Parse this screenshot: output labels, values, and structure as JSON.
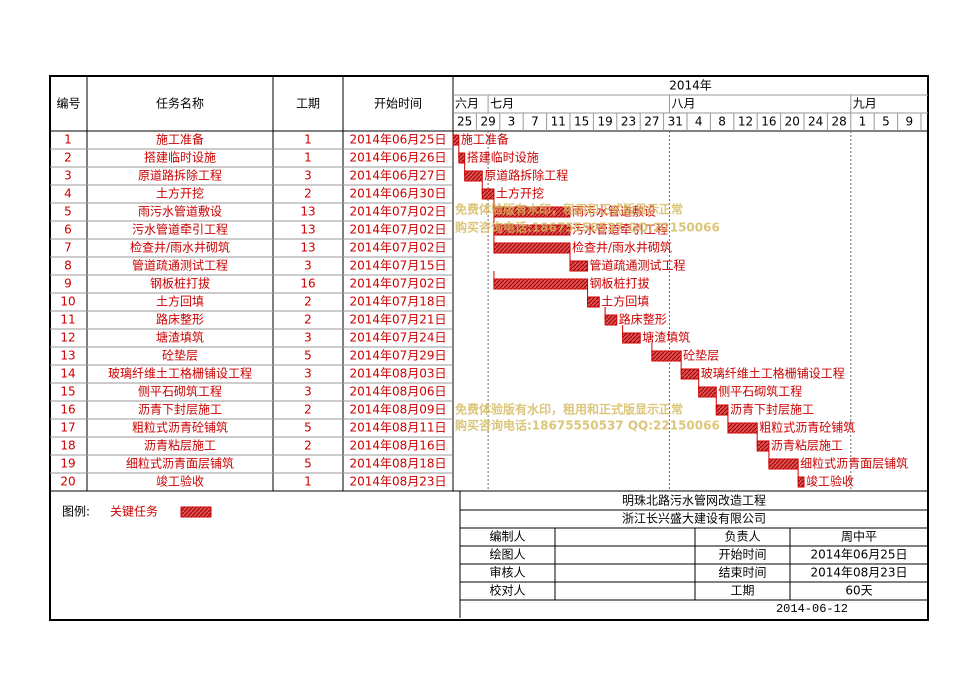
{
  "header": {
    "id": "编号",
    "name": "任务名称",
    "duration": "工期",
    "start": "开始时间"
  },
  "timeline": {
    "year": "2014年",
    "months": [
      "六月",
      "七月",
      "八月",
      "九月"
    ],
    "days": [
      "25",
      "29",
      "3",
      "7",
      "11",
      "15",
      "19",
      "23",
      "27",
      "31",
      "4",
      "8",
      "12",
      "16",
      "20",
      "24",
      "28",
      "1",
      "5",
      "9"
    ]
  },
  "tasks": [
    {
      "id": "1",
      "name": "施工准备",
      "duration": 1,
      "start": "2014年06月25日"
    },
    {
      "id": "2",
      "name": "搭建临时设施",
      "duration": 1,
      "start": "2014年06月26日"
    },
    {
      "id": "3",
      "name": "原道路拆除工程",
      "duration": 3,
      "start": "2014年06月27日"
    },
    {
      "id": "4",
      "name": "土方开挖",
      "duration": 2,
      "start": "2014年06月30日"
    },
    {
      "id": "5",
      "name": "雨污水管道敷设",
      "duration": 13,
      "start": "2014年07月02日"
    },
    {
      "id": "6",
      "name": "污水管道牵引工程",
      "duration": 13,
      "start": "2014年07月02日"
    },
    {
      "id": "7",
      "name": "检查井/雨水井砌筑",
      "duration": 13,
      "start": "2014年07月02日"
    },
    {
      "id": "8",
      "name": "管道疏通测试工程",
      "duration": 3,
      "start": "2014年07月15日"
    },
    {
      "id": "9",
      "name": "钢板桩打拔",
      "duration": 16,
      "start": "2014年07月02日"
    },
    {
      "id": "10",
      "name": "土方回填",
      "duration": 2,
      "start": "2014年07月18日"
    },
    {
      "id": "11",
      "name": "路床整形",
      "duration": 2,
      "start": "2014年07月21日"
    },
    {
      "id": "12",
      "name": "塘渣填筑",
      "duration": 3,
      "start": "2014年07月24日"
    },
    {
      "id": "13",
      "name": "砼垫层",
      "duration": 5,
      "start": "2014年07月29日"
    },
    {
      "id": "14",
      "name": "玻璃纤维土工格栅铺设工程",
      "duration": 3,
      "start": "2014年08月03日"
    },
    {
      "id": "15",
      "name": "侧平石砌筑工程",
      "duration": 3,
      "start": "2014年08月06日"
    },
    {
      "id": "16",
      "name": "沥青下封层施工",
      "duration": 2,
      "start": "2014年08月09日"
    },
    {
      "id": "17",
      "name": "粗粒式沥青砼铺筑",
      "duration": 5,
      "start": "2014年08月11日"
    },
    {
      "id": "18",
      "name": "沥青粘层施工",
      "duration": 2,
      "start": "2014年08月16日"
    },
    {
      "id": "19",
      "name": "细粒式沥青面层铺筑",
      "duration": 5,
      "start": "2014年08月18日"
    },
    {
      "id": "20",
      "name": "竣工验收",
      "duration": 1,
      "start": "2014年08月23日"
    }
  ],
  "legend": {
    "label": "图例:",
    "item": "关键任务"
  },
  "watermark": [
    "免费体验版有水印，租用和正式版显示正常",
    "购买咨询电话:18675550537 QQ:22150066"
  ],
  "info": {
    "project": "明珠北路污水管网改造工程",
    "company": "浙江长兴盛大建设有限公司",
    "rows": [
      [
        "编制人",
        "",
        "负责人",
        "周中平"
      ],
      [
        "绘图人",
        "",
        "开始时间",
        "2014年06月25日"
      ],
      [
        "审核人",
        "",
        "结束时间",
        "2014年08月23日"
      ],
      [
        "校对人",
        "",
        "工期",
        "60天"
      ]
    ],
    "date": "2014-06-12"
  }
}
